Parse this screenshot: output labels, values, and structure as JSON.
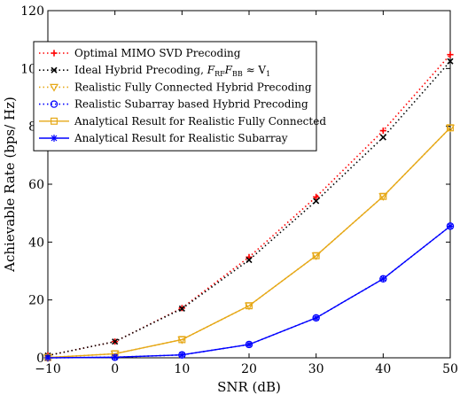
{
  "chart_data": {
    "type": "line",
    "xlabel": "SNR (dB)",
    "ylabel": "Achievable Rate (bps/ Hz)",
    "xlim": [
      -10,
      50
    ],
    "ylim": [
      0,
      120
    ],
    "x_ticks": [
      "−10",
      "0",
      "10",
      "20",
      "30",
      "40",
      "50"
    ],
    "y_ticks": [
      "0",
      "20",
      "40",
      "60",
      "80",
      "100",
      "120"
    ],
    "grid": false,
    "legend_position": "top-left",
    "series": [
      {
        "name": "Optimal MIMO SVD Precoding",
        "legend_parts": [
          "Optimal MIMO SVD Precoding"
        ],
        "color": "#ff0000",
        "line_style": "dotted",
        "marker": "plus",
        "x": [
          -10,
          0,
          10,
          20,
          30,
          40,
          50
        ],
        "y": [
          0.8,
          5.6,
          17.2,
          34.8,
          55.6,
          78.5,
          104.8
        ]
      },
      {
        "name": "Ideal Hybrid Precoding, F_RF F_BB ≈ V_1",
        "legend_parts": [
          "Ideal Hybrid Precoding, ",
          "F",
          "RF",
          "F",
          "BB",
          " ≈ V",
          "1"
        ],
        "color": "#000000",
        "line_style": "dotted",
        "marker": "x",
        "x": [
          -10,
          0,
          10,
          20,
          30,
          40,
          50
        ],
        "y": [
          0.8,
          5.6,
          17.0,
          33.8,
          54.2,
          76.2,
          102.5
        ]
      },
      {
        "name": "Realistic Fully Connected Hybrid Precoding",
        "legend_parts": [
          "Realistic Fully Connected Hybrid Precoding"
        ],
        "color": "#e6a817",
        "line_style": "dotted",
        "marker": "triangle-down",
        "x": [
          -10,
          0,
          10,
          20,
          30,
          40,
          50
        ],
        "y": [
          0.1,
          1.4,
          6.3,
          18.0,
          35.3,
          55.8,
          79.5
        ]
      },
      {
        "name": "Realistic Subarray based Hybrid Precoding",
        "legend_parts": [
          "Realistic Subarray based Hybrid Precoding"
        ],
        "color": "#0000ff",
        "line_style": "dotted",
        "marker": "circle",
        "x": [
          -10,
          0,
          10,
          20,
          30,
          40,
          50
        ],
        "y": [
          0.0,
          0.2,
          1.0,
          4.6,
          13.8,
          27.3,
          45.5
        ]
      },
      {
        "name": "Analytical Result for Realistic Fully Connected",
        "legend_parts": [
          "Analytical Result for Realistic Fully Connected"
        ],
        "color": "#e6a817",
        "line_style": "solid",
        "marker": "square",
        "x": [
          -10,
          0,
          10,
          20,
          30,
          40,
          50
        ],
        "y": [
          0.1,
          1.4,
          6.3,
          18.0,
          35.3,
          55.8,
          79.5
        ]
      },
      {
        "name": "Analytical Result for Realistic Subarray",
        "legend_parts": [
          "Analytical Result for Realistic Subarray"
        ],
        "color": "#0000ff",
        "line_style": "solid",
        "marker": "star",
        "x": [
          -10,
          0,
          10,
          20,
          30,
          40,
          50
        ],
        "y": [
          0.0,
          0.2,
          1.0,
          4.6,
          13.8,
          27.3,
          45.5
        ]
      }
    ]
  }
}
